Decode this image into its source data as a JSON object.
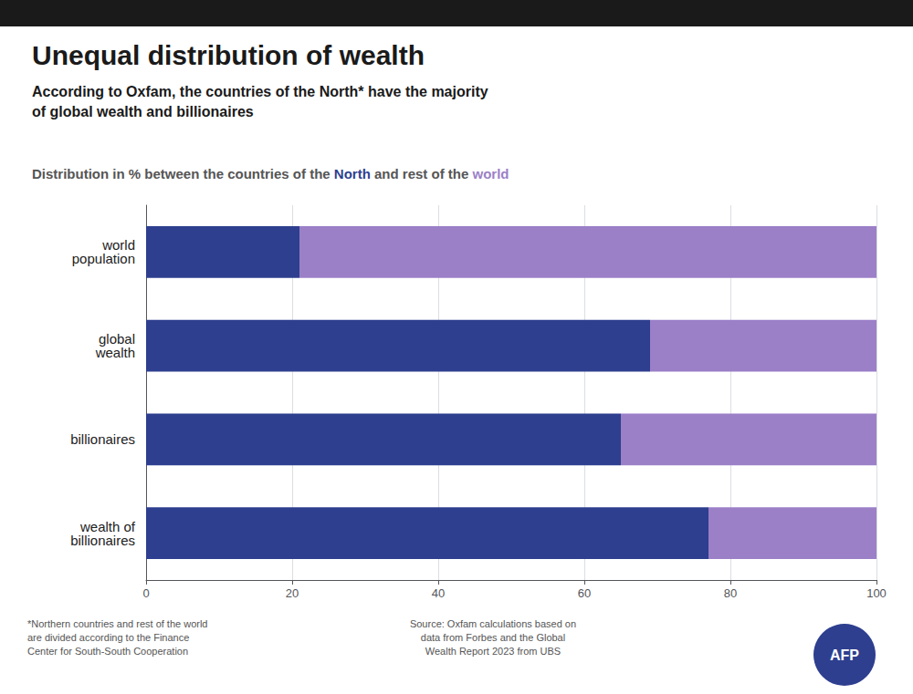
{
  "chart_data": {
    "type": "bar",
    "orientation": "horizontal",
    "stacked": true,
    "title": "Unequal distribution of wealth",
    "subtitle": "According to Oxfam, the countries of the North* have the majority\nof global wealth and billionaires",
    "annotations": [
      "Distribution in % between the countries of the North and rest of the world",
      "*Northern countries and rest of the world\nare divided according to the Finance\nCenter for South-South Cooperation",
      "Source: Oxfam calculations based on\ndata from Forbes and the Global\nWealth Report 2023 from UBS",
      "AFP"
    ],
    "categories": [
      "world\npopulation",
      "global\nwealth",
      "billionaires",
      "wealth of\nbillionaires"
    ],
    "series": [
      {
        "name": "North",
        "color": "#2e3f8f",
        "values": [
          21,
          69,
          65,
          77
        ]
      },
      {
        "name": "world",
        "color": "#9b7fc7",
        "values": [
          79,
          31,
          35,
          23
        ]
      }
    ],
    "xlim": [
      0,
      100
    ],
    "xticks": [
      0,
      20,
      40,
      60,
      80,
      100
    ],
    "grid": true
  }
}
